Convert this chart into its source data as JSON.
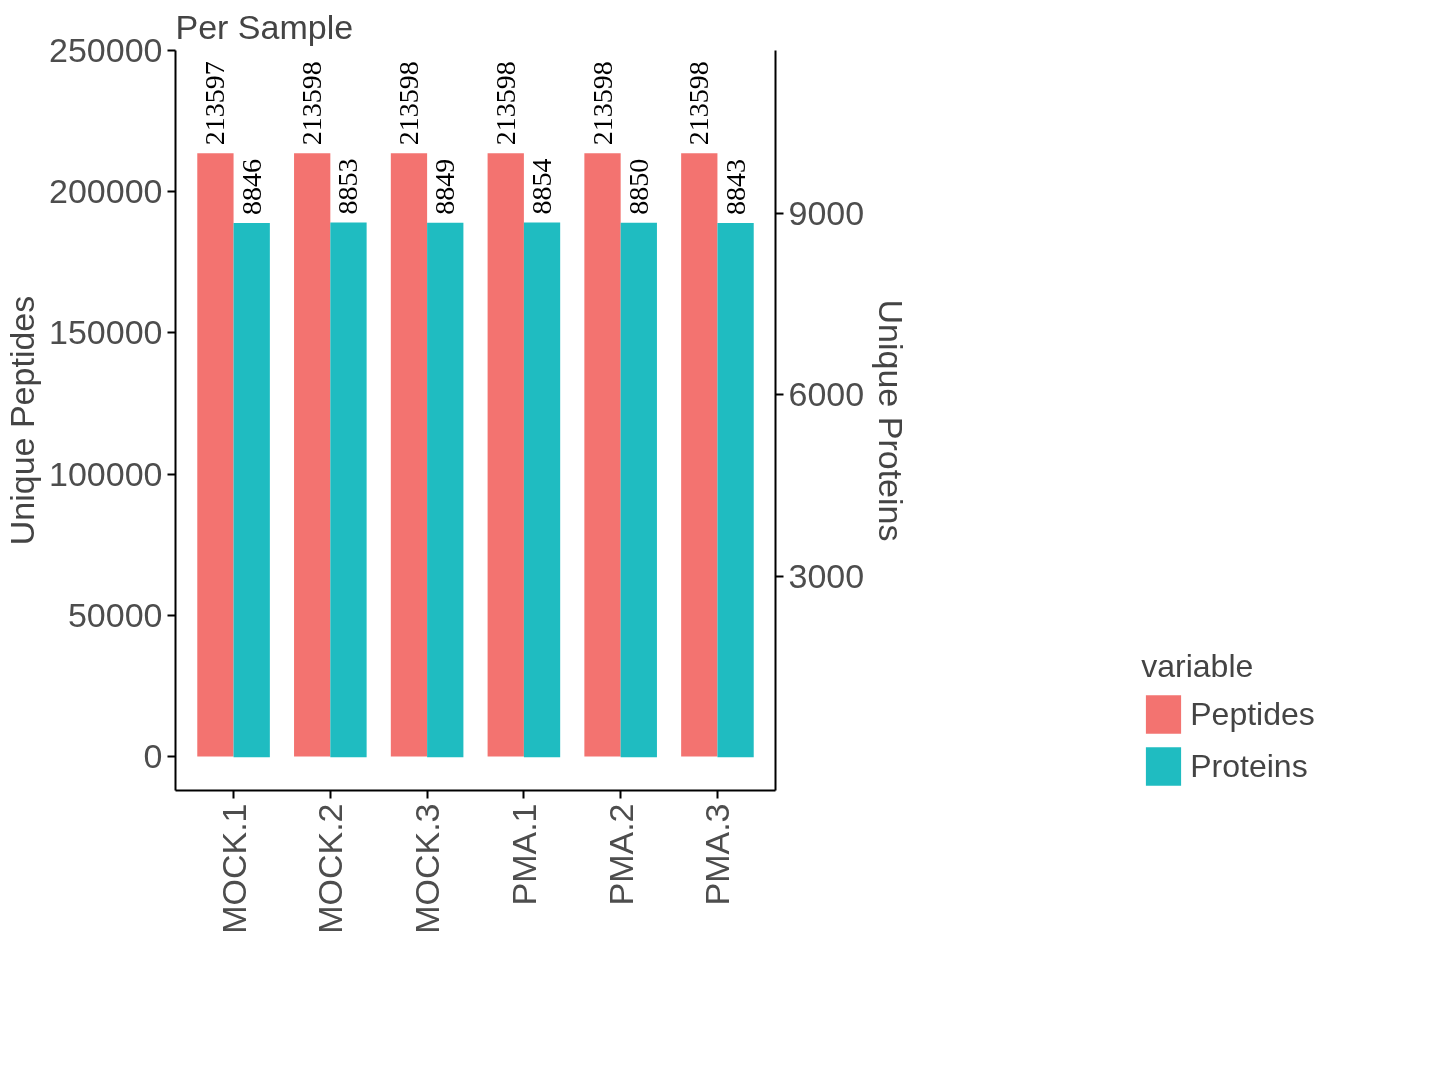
{
  "chart_data": {
    "type": "bar",
    "title": "Per Sample",
    "ylabel": "Unique Peptides",
    "y2label": "Unique Proteins",
    "legend_title": "variable",
    "categories": [
      "MOCK.1",
      "MOCK.2",
      "MOCK.3",
      "PMA.1",
      "PMA.2",
      "PMA.3"
    ],
    "series": [
      {
        "name": "Peptides",
        "color": "#f37370",
        "values": [
          213597,
          213598,
          213598,
          213598,
          213598,
          213598
        ]
      },
      {
        "name": "Proteins",
        "color": "#1fbcc1",
        "axis": "y2",
        "values": [
          8846,
          8853,
          8849,
          8854,
          8850,
          8843
        ]
      }
    ],
    "ylim": [
      -12000,
      250000
    ],
    "yticks": [
      0,
      50000,
      100000,
      150000,
      200000,
      250000
    ],
    "y2lim": [
      -550,
      11700
    ],
    "y2ticks": [
      3000,
      6000,
      9000
    ],
    "data_labels": true,
    "legend": "right",
    "grid": false
  }
}
